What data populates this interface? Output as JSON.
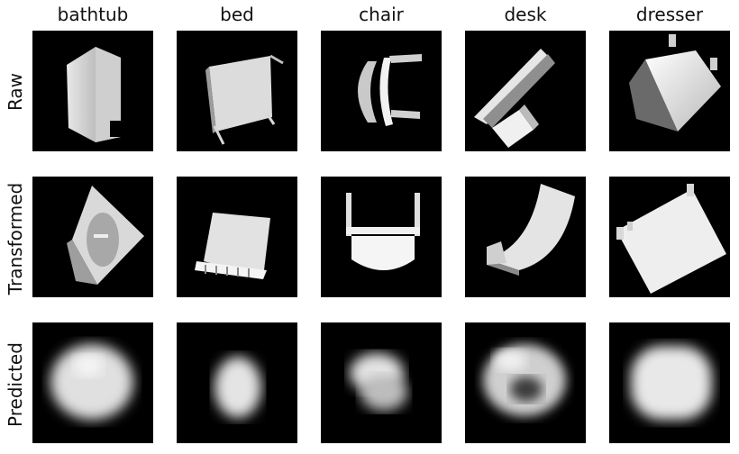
{
  "columns": [
    "bathtub",
    "bed",
    "chair",
    "desk",
    "dresser"
  ],
  "rows": [
    "Raw",
    "Transformed",
    "Predicted"
  ]
}
